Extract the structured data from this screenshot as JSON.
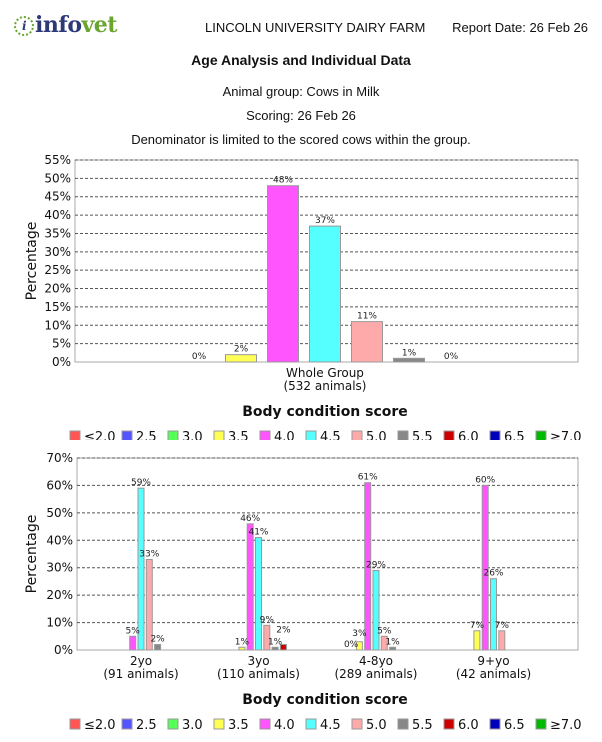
{
  "header": {
    "logo_text_a": "info",
    "logo_text_b": "vet",
    "logo_mark": "i",
    "farm": "LINCOLN UNIVERSITY DAIRY FARM",
    "report_date": "Report Date: 26 Feb 26"
  },
  "report": {
    "title": "Age Analysis and Individual Data",
    "group": "Animal group: Cows in Milk",
    "scoring": "Scoring: 26 Feb 26",
    "note": "Denominator is limited to the scored cows within the group."
  },
  "legend": {
    "categories": [
      "≤2.0",
      "2.5",
      "3.0",
      "3.5",
      "4.0",
      "4.5",
      "5.0",
      "5.5",
      "6.0",
      "6.5",
      "≥7.0"
    ],
    "colors": [
      "#ff5555",
      "#5555ff",
      "#55ff55",
      "#ffff55",
      "#ff55ff",
      "#55ffff",
      "#ffaaaa",
      "#888888",
      "#cc0000",
      "#0000bb",
      "#00bb00"
    ]
  },
  "chart_data": [
    {
      "type": "bar",
      "title": "",
      "xlabel": "Body condition score",
      "ylabel": "Percentage",
      "ylim": [
        0,
        55
      ],
      "yticks": [
        "0%",
        "5%",
        "10%",
        "15%",
        "20%",
        "25%",
        "30%",
        "35%",
        "40%",
        "45%",
        "50%",
        "55%"
      ],
      "ytick_values": [
        0,
        5,
        10,
        15,
        20,
        25,
        30,
        35,
        40,
        45,
        50,
        55
      ],
      "grid": true,
      "groups": [
        {
          "label": "Whole Group",
          "sublabel": "(532 animals)",
          "values": [
            null,
            null,
            0,
            2,
            48,
            37,
            11,
            1,
            0,
            null,
            null
          ],
          "labels": [
            "",
            "",
            "0%",
            "2%",
            "48%",
            "37%",
            "11%",
            "1%",
            "0%",
            "",
            ""
          ]
        }
      ]
    },
    {
      "type": "bar",
      "title": "",
      "xlabel": "Body condition score",
      "ylabel": "Percentage",
      "ylim": [
        0,
        70
      ],
      "yticks": [
        "0%",
        "10%",
        "20%",
        "30%",
        "40%",
        "50%",
        "60%",
        "70%"
      ],
      "ytick_values": [
        0,
        10,
        20,
        30,
        40,
        50,
        60,
        70
      ],
      "grid": true,
      "groups": [
        {
          "label": "2yo",
          "sublabel": "(91 animals)",
          "values": [
            null,
            null,
            null,
            null,
            5,
            59,
            33,
            2,
            null,
            null,
            null
          ],
          "labels": [
            "",
            "",
            "",
            "",
            "5%",
            "59%",
            "33%",
            "2%",
            "",
            "",
            ""
          ]
        },
        {
          "label": "3yo",
          "sublabel": "(110 animals)",
          "values": [
            null,
            null,
            null,
            1,
            46,
            41,
            9,
            1,
            2,
            null,
            null
          ],
          "labels": [
            "",
            "",
            "",
            "1%",
            "46%",
            "41%",
            "9%",
            "1%",
            "2%",
            "",
            ""
          ]
        },
        {
          "label": "4-8yo",
          "sublabel": "(289 animals)",
          "values": [
            null,
            null,
            0,
            3,
            61,
            29,
            5,
            1,
            null,
            null,
            null
          ],
          "labels": [
            "",
            "",
            "0%",
            "3%",
            "61%",
            "29%",
            "5%",
            "1%",
            "",
            "",
            ""
          ]
        },
        {
          "label": "9+yo",
          "sublabel": "(42 animals)",
          "values": [
            null,
            null,
            null,
            7,
            60,
            26,
            7,
            null,
            null,
            null,
            null
          ],
          "labels": [
            "",
            "",
            "",
            "7%",
            "60%",
            "26%",
            "7%",
            "",
            "",
            "",
            ""
          ]
        }
      ]
    }
  ]
}
